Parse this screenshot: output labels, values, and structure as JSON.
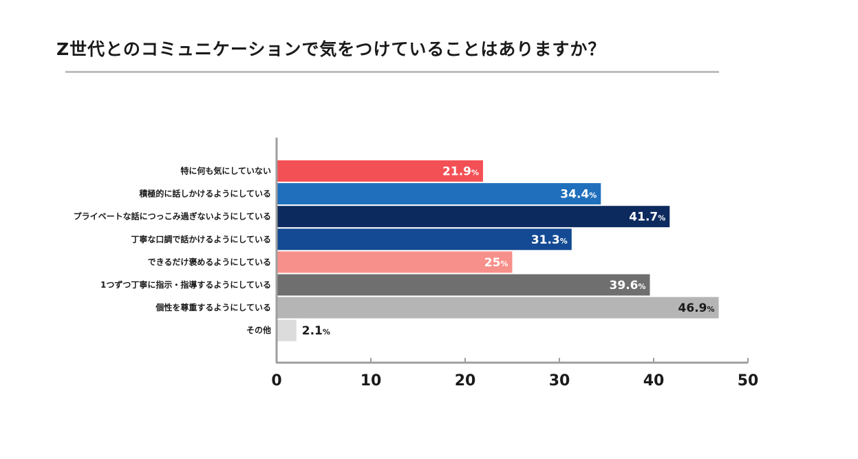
{
  "chart_data": {
    "type": "bar",
    "orientation": "horizontal",
    "title": "Z世代とのコミュニケーションで気をつけていることはありますか？",
    "categories": [
      "特に何も気にしていない",
      "積極的に話しかけるようにしている",
      "プライベートな話につっこみ過ぎないようにしている",
      "丁寧な口調で話かけるようにしている",
      "できるだけ褒めるようにしている",
      "1つずつ丁寧に指示・指導するようにしている",
      "個性を尊重するようにしている",
      "その他"
    ],
    "values": [
      21.9,
      34.4,
      41.7,
      31.3,
      25,
      39.6,
      46.9,
      2.1
    ],
    "value_labels": [
      "21.9",
      "34.4",
      "41.7",
      "31.3",
      "25",
      "39.6",
      "46.9",
      "2.1"
    ],
    "value_unit": "%",
    "colors": [
      "#f35055",
      "#1f6fbc",
      "#0d2a5f",
      "#144a93",
      "#f7908a",
      "#6f6f6f",
      "#b5b5b5",
      "#dcdcdc"
    ],
    "label_colors": [
      "#ffffff",
      "#ffffff",
      "#ffffff",
      "#ffffff",
      "#ffffff",
      "#ffffff",
      "#1a1a1a",
      "#1a1a1a"
    ],
    "xlim": [
      0,
      50
    ],
    "xticks": [
      "0",
      "10",
      "20",
      "30",
      "40",
      "50"
    ],
    "grid": false,
    "legend": "none"
  }
}
